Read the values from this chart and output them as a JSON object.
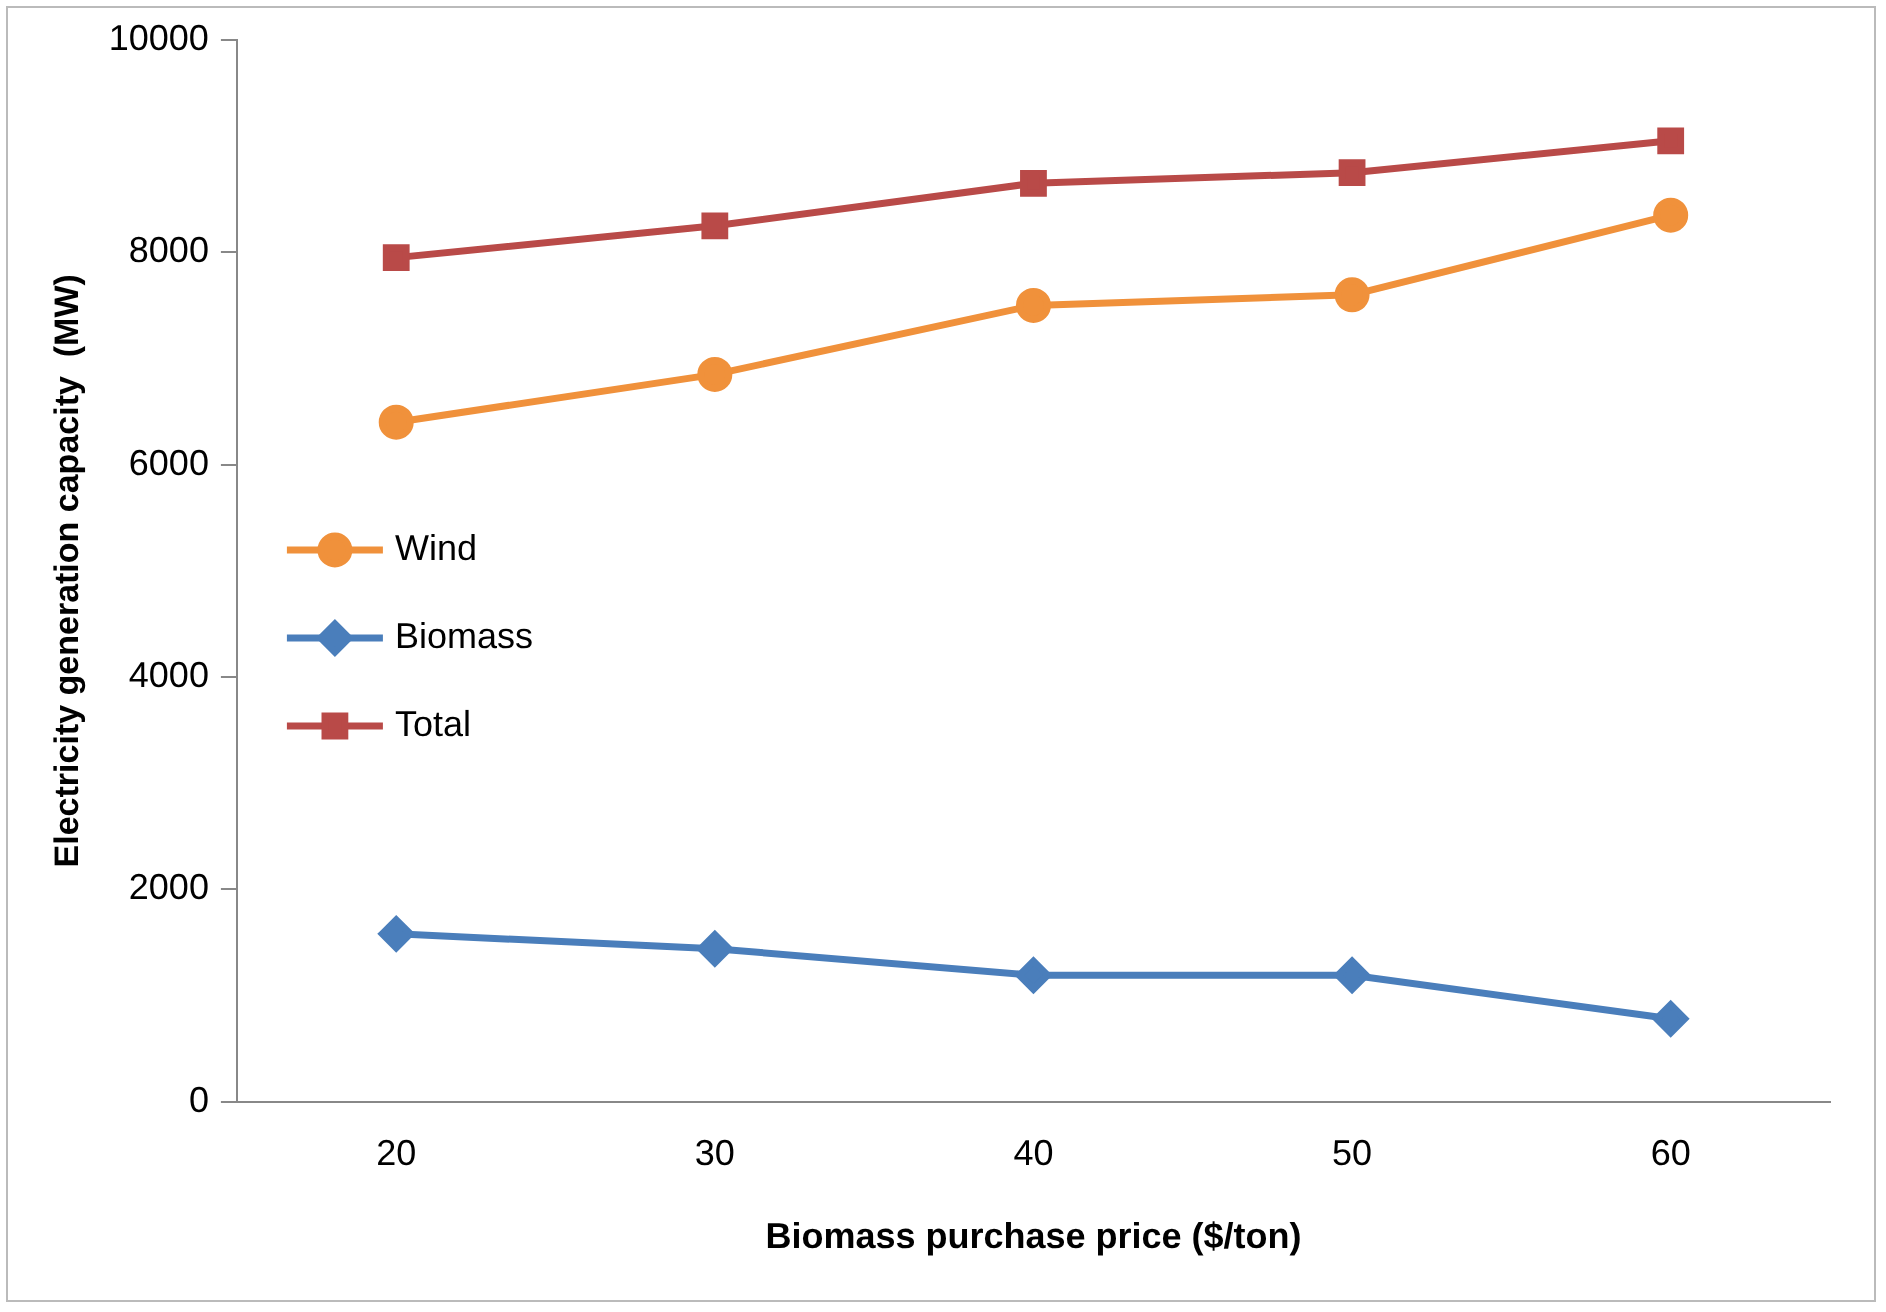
{
  "chart_data": {
    "type": "line",
    "xlabel": "Biomass purchase price ($/ton)",
    "ylabel": "Electricity generation capacity  (MW)",
    "categories": [
      "20",
      "30",
      "40",
      "50",
      "60"
    ],
    "series": [
      {
        "name": "Wind",
        "color": "#f0913b",
        "marker": "circle",
        "values": [
          6400,
          6850,
          7500,
          7600,
          8350
        ]
      },
      {
        "name": "Biomass",
        "color": "#4a7ebb",
        "marker": "diamond",
        "values": [
          1580,
          1440,
          1190,
          1190,
          780
        ]
      },
      {
        "name": "Total",
        "color": "#b94a48",
        "marker": "square",
        "values": [
          7950,
          8250,
          8650,
          8750,
          9050
        ]
      }
    ],
    "ylim": [
      0,
      10000
    ],
    "yticks": [
      0,
      2000,
      4000,
      6000,
      8000,
      10000
    ],
    "grid": false,
    "legend": "left",
    "line_style": "solid"
  }
}
